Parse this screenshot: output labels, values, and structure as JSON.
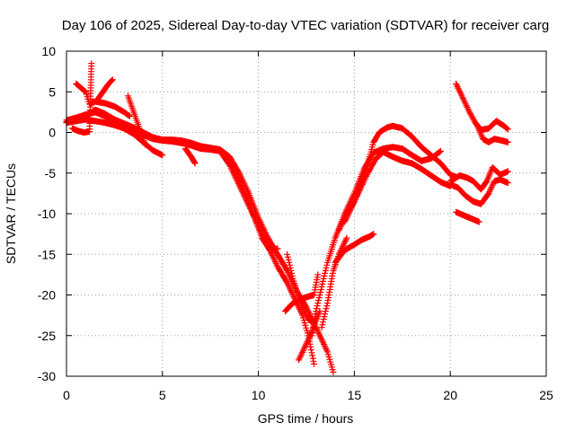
{
  "chart_data": {
    "type": "scatter",
    "title": "Day 106 of 2025, Sidereal Day-to-day VTEC variation (SDTVAR) for receiver carg",
    "xlabel": "GPS time / hours",
    "ylabel": "SDTVAR / TECUs",
    "xlim": [
      0,
      25
    ],
    "ylim": [
      -30,
      10
    ],
    "x_ticks": [
      0,
      5,
      10,
      15,
      20,
      25
    ],
    "y_ticks": [
      -30,
      -25,
      -20,
      -15,
      -10,
      -5,
      0,
      5,
      10
    ],
    "grid": true,
    "marker": "plus",
    "color": "#ff0000",
    "series": [
      {
        "points": [
          [
            0,
            1.3
          ],
          [
            0.5,
            1.5
          ],
          [
            1,
            2
          ],
          [
            1.5,
            2.8
          ],
          [
            2,
            2.3
          ],
          [
            2.5,
            1.6
          ],
          [
            3,
            1.1
          ],
          [
            3.5,
            0.6
          ],
          [
            4,
            0
          ],
          [
            4.5,
            -0.6
          ],
          [
            5,
            -0.9
          ],
          [
            5.5,
            -0.9
          ],
          [
            6,
            -1
          ],
          [
            6.5,
            -1.3
          ],
          [
            7,
            -1.7
          ],
          [
            7.5,
            -1.9
          ],
          [
            8,
            -2.1
          ],
          [
            8.5,
            -3
          ],
          [
            9,
            -5
          ],
          [
            9.5,
            -7.5
          ],
          [
            10,
            -10.5
          ],
          [
            10.5,
            -13
          ],
          [
            11,
            -15
          ],
          [
            11.5,
            -17
          ],
          [
            12,
            -19.5
          ],
          [
            12.5,
            -21.5
          ],
          [
            13,
            -24
          ],
          [
            13.3,
            -25.5
          ],
          [
            13.6,
            -27
          ],
          [
            13.9,
            -29.5
          ]
        ]
      },
      {
        "points": [
          [
            0,
            1.5
          ],
          [
            0.5,
            1.8
          ],
          [
            1,
            2.2
          ],
          [
            1.5,
            2.5
          ],
          [
            2,
            2
          ],
          [
            2.5,
            1.5
          ],
          [
            3,
            1
          ],
          [
            3.5,
            0.3
          ],
          [
            4,
            -0.3
          ],
          [
            4.5,
            -0.8
          ],
          [
            5,
            -1
          ],
          [
            5.5,
            -1.1
          ],
          [
            6,
            -1.3
          ],
          [
            6.5,
            -1.6
          ],
          [
            7,
            -2
          ],
          [
            7.5,
            -2.1
          ],
          [
            8,
            -2.3
          ],
          [
            8.5,
            -4
          ],
          [
            9,
            -6.5
          ],
          [
            9.5,
            -9
          ],
          [
            10,
            -11.5
          ],
          [
            10.5,
            -14
          ],
          [
            11,
            -16.5
          ],
          [
            11.5,
            -18.5
          ],
          [
            12,
            -21
          ],
          [
            12.3,
            -22.5
          ],
          [
            12.6,
            -25
          ],
          [
            12.9,
            -28.5
          ]
        ]
      },
      {
        "points": [
          [
            0,
            1.2
          ],
          [
            0.5,
            1.4
          ],
          [
            1,
            1.6
          ],
          [
            1.5,
            1.4
          ],
          [
            2,
            1.2
          ],
          [
            2.5,
            0.9
          ],
          [
            3,
            0.5
          ],
          [
            3.5,
            -0.2
          ],
          [
            4,
            -1.2
          ],
          [
            4.5,
            -2.2
          ],
          [
            5,
            -2.8
          ]
        ]
      },
      {
        "points": [
          [
            0.5,
            6
          ],
          [
            1,
            5
          ],
          [
            1.2,
            3.5
          ],
          [
            1.5,
            3.8
          ],
          [
            2,
            3.6
          ],
          [
            2.5,
            3.2
          ],
          [
            3,
            2.5
          ],
          [
            3.3,
            2
          ]
        ]
      },
      {
        "points": [
          [
            0.3,
            0.5
          ],
          [
            0.6,
            0.2
          ],
          [
            0.9,
            0
          ],
          [
            1.2,
            0.1
          ],
          [
            1.3,
            8.5
          ]
        ]
      },
      {
        "points": [
          [
            1.6,
            4
          ],
          [
            1.9,
            5
          ],
          [
            2.2,
            6
          ],
          [
            2.4,
            6.5
          ]
        ]
      },
      {
        "points": [
          [
            3.2,
            4.5
          ],
          [
            3.5,
            2.5
          ],
          [
            3.8,
            0.5
          ],
          [
            4.1,
            -1.5
          ]
        ]
      },
      {
        "points": [
          [
            6.2,
            -2
          ],
          [
            6.5,
            -3
          ],
          [
            6.7,
            -3.8
          ]
        ]
      },
      {
        "points": [
          [
            8.6,
            -4
          ],
          [
            9,
            -6
          ],
          [
            9.4,
            -8
          ],
          [
            9.8,
            -10.5
          ],
          [
            10.2,
            -13
          ],
          [
            10.6,
            -14.5
          ],
          [
            11,
            -14.3
          ]
        ]
      },
      {
        "points": [
          [
            11.5,
            -15
          ],
          [
            11.8,
            -18
          ],
          [
            12.2,
            -21
          ],
          [
            12.6,
            -23
          ],
          [
            12.9,
            -23.5
          ]
        ]
      },
      {
        "points": [
          [
            12.8,
            -25
          ],
          [
            13,
            -22
          ],
          [
            13.3,
            -19
          ],
          [
            13.6,
            -16
          ],
          [
            14,
            -13
          ],
          [
            14.5,
            -10
          ],
          [
            15,
            -7.5
          ],
          [
            15.5,
            -4.5
          ],
          [
            16,
            -2.5
          ],
          [
            16.5,
            -2
          ],
          [
            17,
            -1.8
          ],
          [
            17.5,
            -2
          ],
          [
            18,
            -2.8
          ],
          [
            18.5,
            -3.5
          ],
          [
            19,
            -3.2
          ],
          [
            19.5,
            -2.3
          ]
        ]
      },
      {
        "points": [
          [
            11.4,
            -22
          ],
          [
            11.8,
            -21
          ],
          [
            12.2,
            -20.5
          ],
          [
            12.6,
            -20.2
          ],
          [
            12.9,
            -20
          ],
          [
            13.1,
            -17.5
          ]
        ]
      },
      {
        "points": [
          [
            12.1,
            -28
          ],
          [
            12.4,
            -26.5
          ],
          [
            12.7,
            -25
          ],
          [
            13.2,
            -22
          ]
        ]
      },
      {
        "points": [
          [
            13.3,
            -24
          ],
          [
            13.6,
            -21
          ],
          [
            13.9,
            -17
          ],
          [
            14.2,
            -15
          ],
          [
            14.6,
            -13
          ]
        ]
      },
      {
        "points": [
          [
            14,
            -16
          ],
          [
            14.5,
            -14.5
          ],
          [
            15,
            -13.8
          ],
          [
            15.4,
            -13.2
          ],
          [
            15.8,
            -12.8
          ],
          [
            16,
            -12.5
          ]
        ]
      },
      {
        "points": [
          [
            14.2,
            -12
          ],
          [
            14.6,
            -10
          ],
          [
            15,
            -8.5
          ],
          [
            15.4,
            -6
          ],
          [
            15.8,
            -3
          ],
          [
            16,
            -1.2
          ],
          [
            16.3,
            0
          ],
          [
            16.7,
            0.6
          ],
          [
            17,
            0.8
          ],
          [
            17.5,
            0.5
          ],
          [
            18,
            -0.5
          ],
          [
            18.5,
            -1.8
          ],
          [
            19,
            -2.8
          ],
          [
            19.5,
            -3.8
          ],
          [
            20,
            -5.2
          ],
          [
            20.3,
            -5.5
          ]
        ]
      },
      {
        "points": [
          [
            14.5,
            -11
          ],
          [
            14.9,
            -9
          ],
          [
            15.3,
            -7
          ],
          [
            15.7,
            -5
          ],
          [
            16.1,
            -3.3
          ],
          [
            16.5,
            -2.4
          ],
          [
            17,
            -3
          ],
          [
            17.5,
            -3.5
          ],
          [
            18,
            -3.8
          ],
          [
            18.5,
            -4.5
          ],
          [
            19,
            -5.3
          ],
          [
            19.5,
            -6.1
          ],
          [
            20,
            -6.6
          ]
        ]
      },
      {
        "points": [
          [
            20.3,
            6
          ],
          [
            20.6,
            4.5
          ],
          [
            21,
            2.5
          ],
          [
            21.3,
            1.2
          ],
          [
            21.6,
            0.3
          ],
          [
            22,
            0.5
          ],
          [
            22.4,
            1.4
          ],
          [
            22.8,
            0.8
          ],
          [
            23,
            0.4
          ]
        ]
      },
      {
        "points": [
          [
            21.4,
            0.9
          ],
          [
            21.7,
            -0.8
          ],
          [
            22,
            -1.2
          ],
          [
            22.3,
            -0.8
          ],
          [
            22.7,
            -1
          ],
          [
            23,
            -1.2
          ]
        ]
      },
      {
        "points": [
          [
            20,
            -6.4
          ],
          [
            20.4,
            -6.8
          ],
          [
            20.8,
            -7.8
          ],
          [
            21.2,
            -8.5
          ],
          [
            21.6,
            -8.8
          ],
          [
            22,
            -7.5
          ],
          [
            22.3,
            -6
          ],
          [
            22.6,
            -5.8
          ],
          [
            23,
            -6.2
          ]
        ]
      },
      {
        "points": [
          [
            20,
            -6
          ],
          [
            20.5,
            -5.3
          ],
          [
            20.9,
            -5.6
          ],
          [
            21.2,
            -6
          ],
          [
            21.6,
            -7
          ],
          [
            21.9,
            -6
          ],
          [
            22.2,
            -4.3
          ],
          [
            22.6,
            -5.2
          ],
          [
            23,
            -4.8
          ]
        ]
      },
      {
        "points": [
          [
            20.3,
            -9.8
          ],
          [
            20.7,
            -10.2
          ],
          [
            21.1,
            -10.6
          ],
          [
            21.5,
            -11
          ]
        ]
      }
    ]
  }
}
